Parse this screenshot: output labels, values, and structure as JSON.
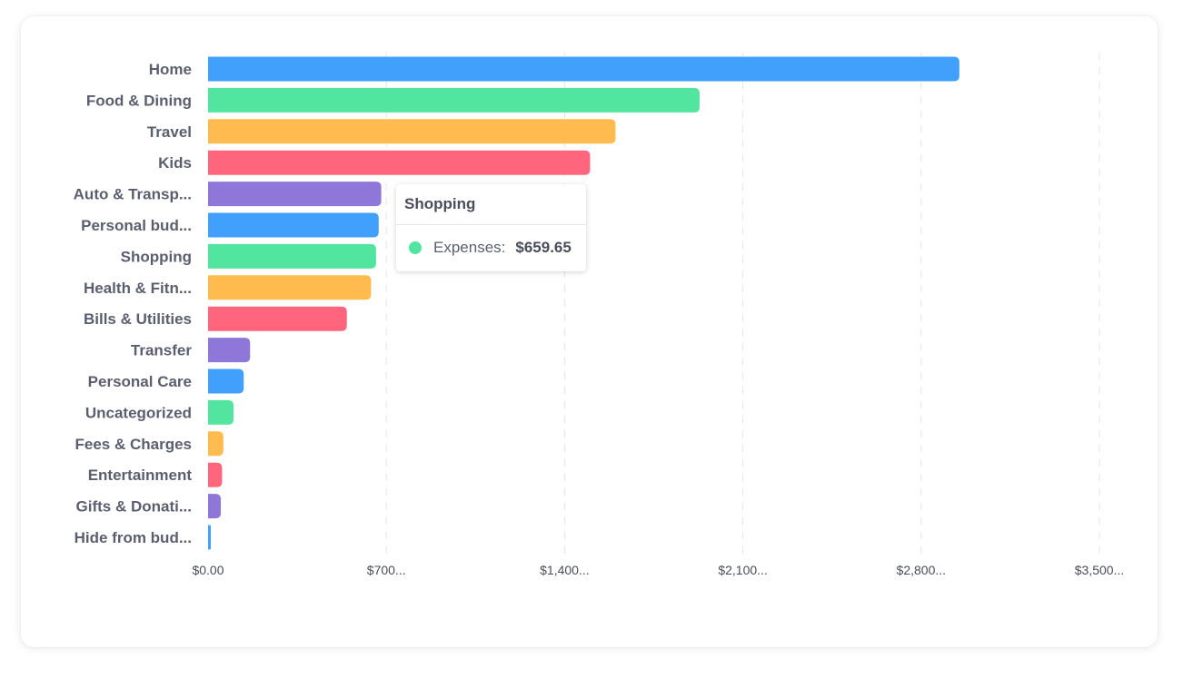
{
  "chart_data": {
    "type": "bar",
    "orientation": "horizontal",
    "categories": [
      "Home",
      "Food & Dining",
      "Travel",
      "Kids",
      "Auto & Transp...",
      "Personal bud...",
      "Shopping",
      "Health & Fitn...",
      "Bills & Utilities",
      "Transfer",
      "Personal Care",
      "Uncategorized",
      "Fees & Charges",
      "Entertainment",
      "Gifts & Donati...",
      "Hide from bud..."
    ],
    "series": [
      {
        "values": [
          2950,
          1930,
          1600,
          1500,
          680,
          670,
          659.65,
          640,
          545,
          165,
          140,
          100,
          60,
          55,
          50,
          10
        ]
      }
    ],
    "bar_colors": [
      "#40a0fb",
      "#52e5a0",
      "#ffbb4d",
      "#ff667d",
      "#8e77d8"
    ],
    "xlim": [
      0,
      3500
    ],
    "x_ticks": [
      0,
      700,
      1400,
      2100,
      2800,
      3500
    ],
    "x_tick_labels": [
      "$0.00",
      "$700...",
      "$1,400...",
      "$2,100...",
      "$2,800...",
      "$3,500..."
    ],
    "grid": "vertical dashed",
    "legend": "none",
    "tooltip": {
      "category": "Shopping",
      "series_label": "Expenses:",
      "value_label": "$659.65",
      "marker_color": "#52e5a0"
    }
  }
}
